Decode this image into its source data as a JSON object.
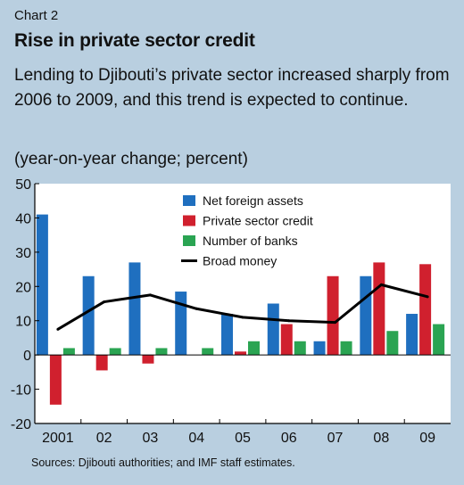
{
  "header": {
    "chart_number": "Chart 2",
    "title": "Rise in private sector credit",
    "subtitle": "Lending to Djibouti’s private sector increased sharply from 2006 to 2009, and this trend is expected to continue.",
    "unit_note": "(year-on-year change; percent)"
  },
  "footer": {
    "source": "Sources: Djibouti authorities; and IMF staff estimates."
  },
  "chart_data": {
    "type": "bar",
    "categories": [
      "2001",
      "02",
      "03",
      "04",
      "05",
      "06",
      "07",
      "08",
      "09"
    ],
    "ylim": [
      -20,
      50
    ],
    "yticks": [
      "-20",
      "-10",
      "0",
      "10",
      "20",
      "30",
      "40",
      "50"
    ],
    "grid": false,
    "legend_position": "top-center",
    "series": [
      {
        "name": "Net foreign assets",
        "kind": "bar",
        "color": "#1f6fbf",
        "values": [
          41,
          23,
          27,
          18.5,
          12,
          15,
          4,
          23,
          12
        ]
      },
      {
        "name": "Private sector credit",
        "kind": "bar",
        "color": "#d0202e",
        "values": [
          -14.5,
          -4.5,
          -2.5,
          null,
          1,
          9,
          23,
          27,
          26.5
        ]
      },
      {
        "name": "Number of banks",
        "kind": "bar",
        "color": "#2aa452",
        "values": [
          2,
          2,
          2,
          2,
          4,
          4,
          4,
          7,
          9
        ]
      },
      {
        "name": "Broad money",
        "kind": "line",
        "color": "#000000",
        "values": [
          7.5,
          15.5,
          17.5,
          13.5,
          11,
          10,
          9.5,
          20.5,
          17
        ]
      }
    ]
  }
}
